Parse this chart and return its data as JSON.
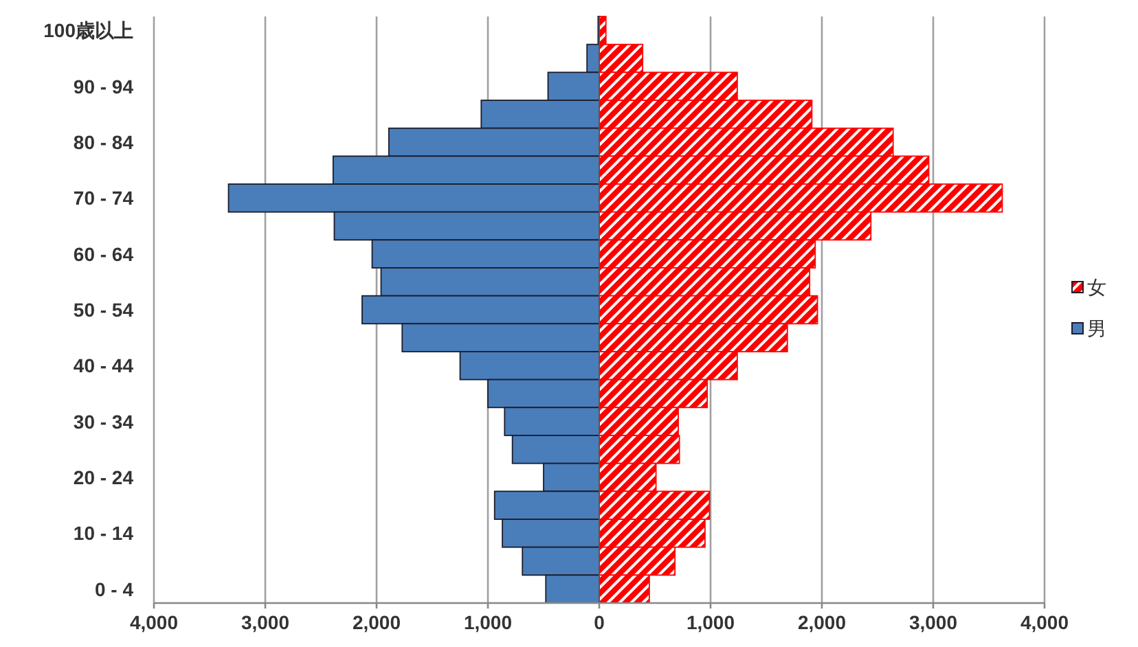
{
  "chart_data": {
    "type": "bar",
    "orientation": "horizontal",
    "categories": [
      "100歳以上",
      null,
      "90 - 94",
      null,
      "80 - 84",
      null,
      "70 - 74",
      null,
      "60 - 64",
      null,
      "50 - 54",
      null,
      "40 - 44",
      null,
      "30 - 34",
      null,
      "20 - 24",
      null,
      "10 - 14",
      null,
      "0 - 4"
    ],
    "series": [
      {
        "name": "女",
        "color": "#ff0000",
        "values": [
          60,
          390,
          1240,
          1910,
          2640,
          2960,
          3620,
          2440,
          1940,
          1890,
          1960,
          1690,
          1240,
          970,
          710,
          720,
          510,
          990,
          950,
          680,
          450
        ]
      },
      {
        "name": "男",
        "color": "#4a7ebb",
        "values": [
          -10,
          -110,
          -460,
          -1060,
          -1890,
          -2390,
          -3330,
          -2380,
          -2040,
          -1960,
          -2130,
          -1770,
          -1250,
          -1000,
          -850,
          -780,
          -500,
          -940,
          -870,
          -690,
          -480
        ]
      }
    ],
    "xlim": [
      -4000,
      4000
    ],
    "xticks": [
      {
        "value": -4000,
        "label": "4,000"
      },
      {
        "value": -3000,
        "label": "3,000"
      },
      {
        "value": -2000,
        "label": "2,000"
      },
      {
        "value": -1000,
        "label": "1,000"
      },
      0,
      {
        "value": 1000,
        "label": "1,000"
      },
      {
        "value": 2000,
        "label": "2,000"
      },
      {
        "value": 3000,
        "label": "3,000"
      },
      {
        "value": 4000,
        "label": "4,000"
      }
    ],
    "stacked": true,
    "grid": "x",
    "legend": "right"
  }
}
